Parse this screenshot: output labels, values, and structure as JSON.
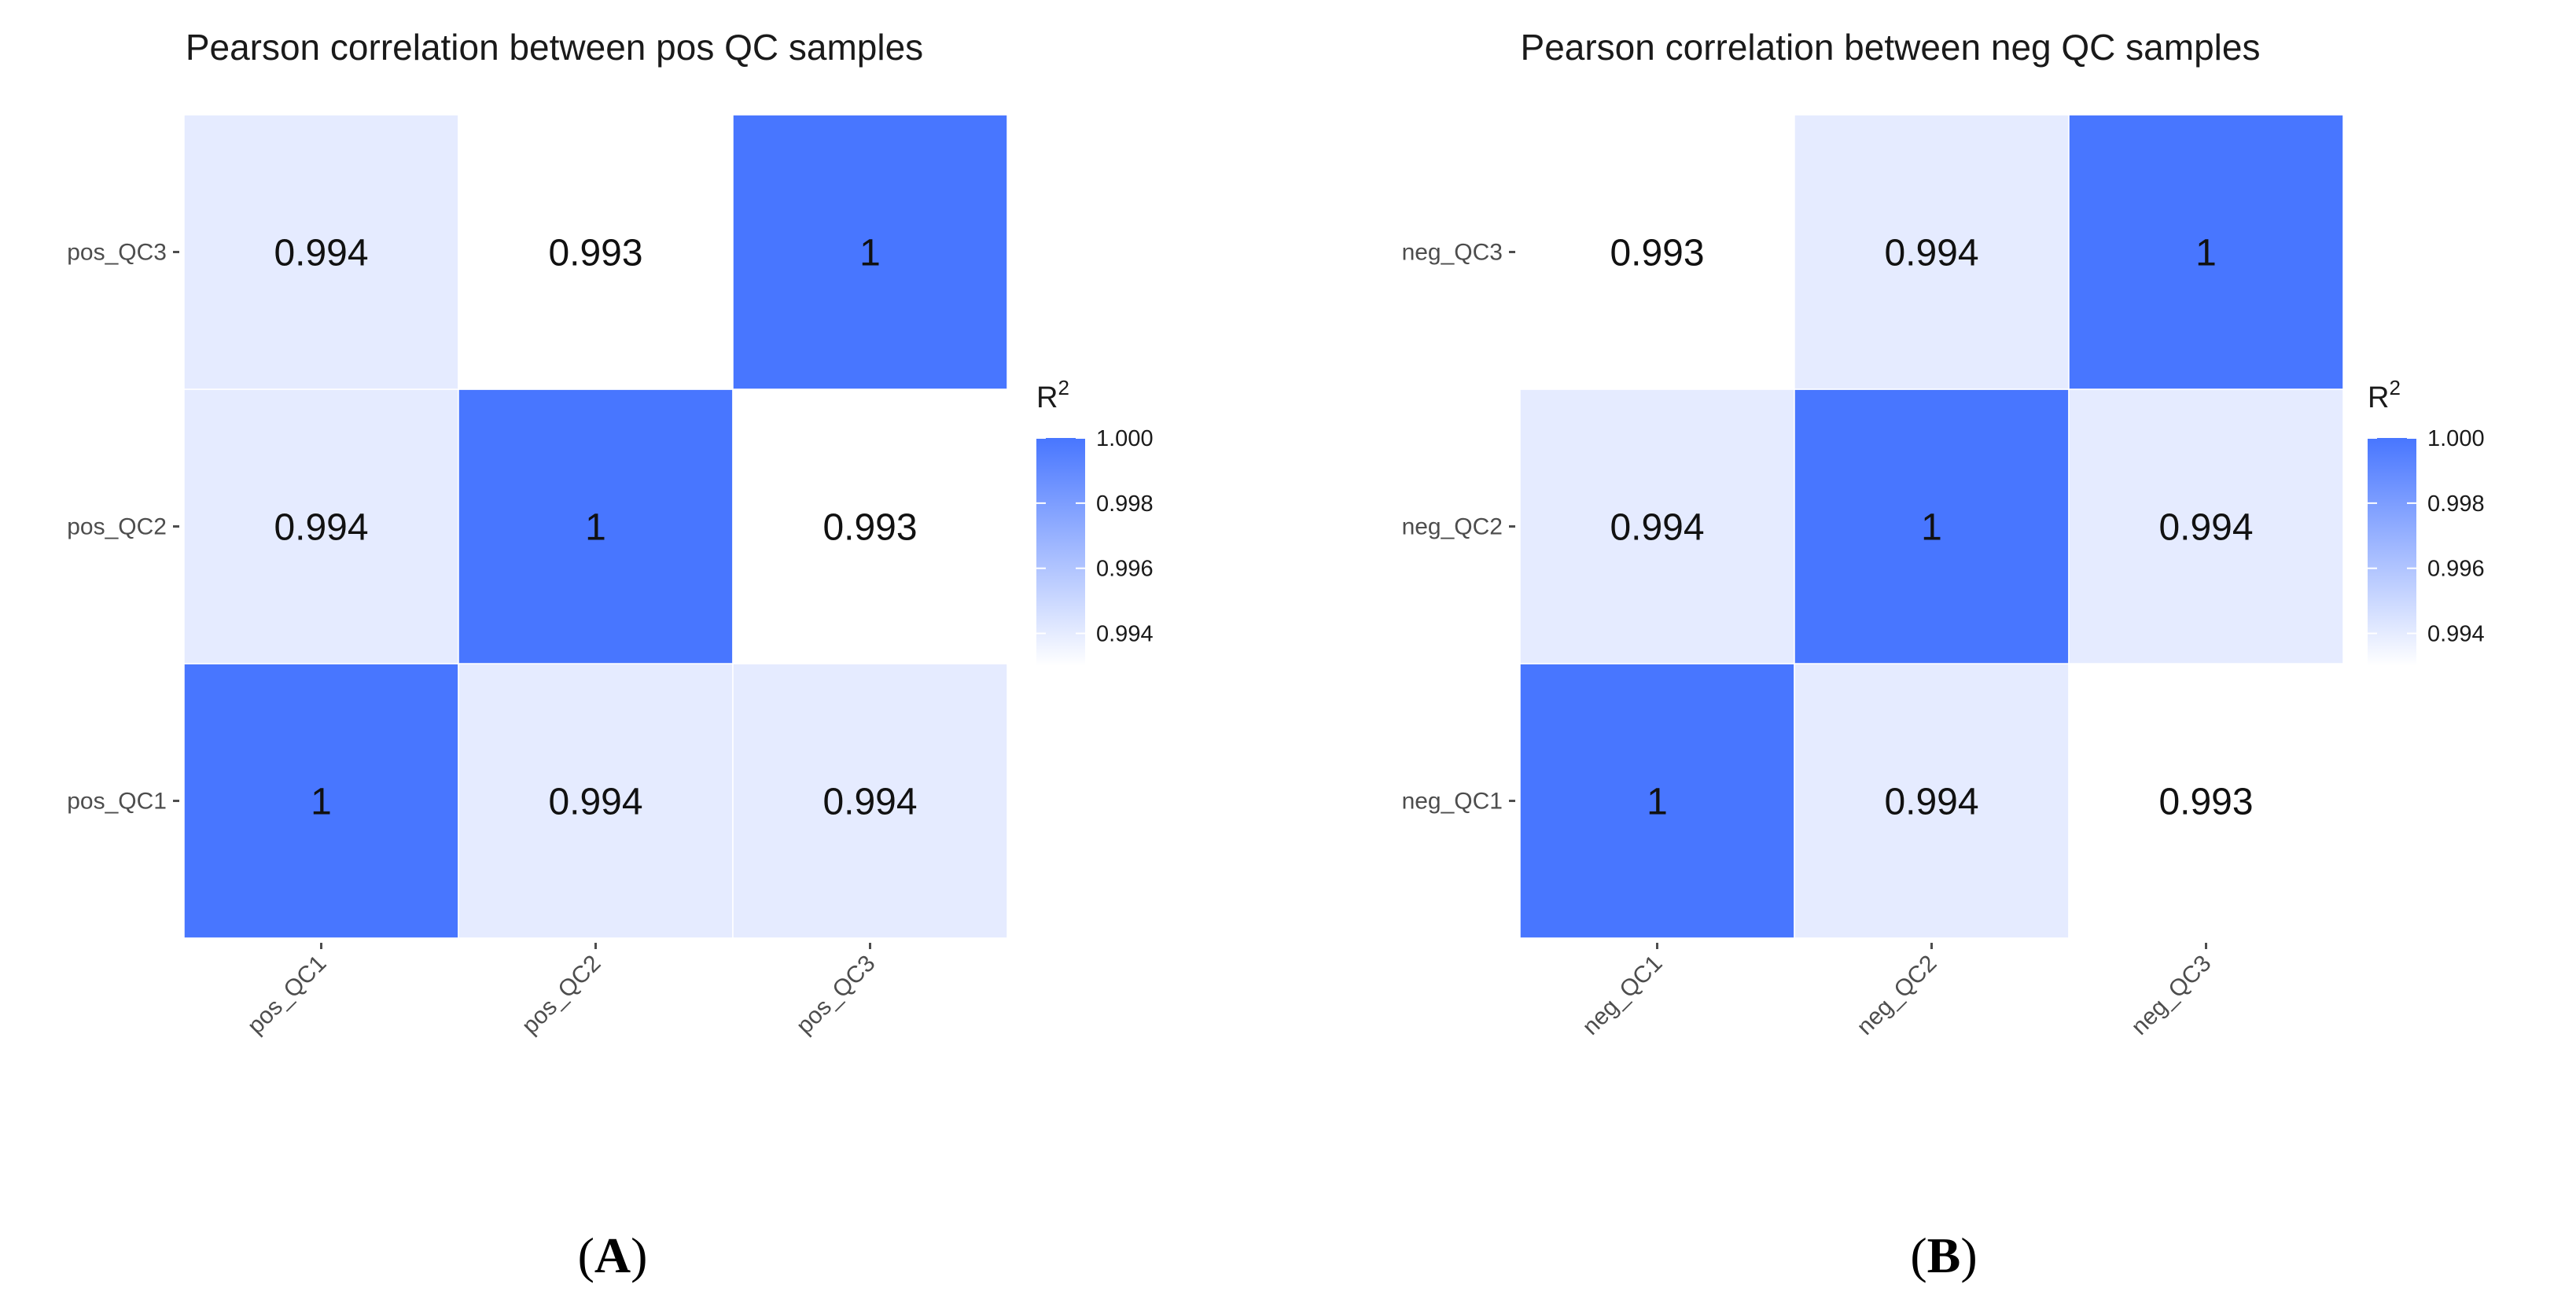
{
  "chart_data": [
    {
      "type": "heatmap",
      "title": "Pearson correlation between pos QC samples",
      "x_categories": [
        "pos_QC1",
        "pos_QC2",
        "pos_QC3"
      ],
      "y_categories": [
        "pos_QC1",
        "pos_QC2",
        "pos_QC3"
      ],
      "values": [
        {
          "x": "pos_QC1",
          "y": "pos_QC1",
          "value": 1,
          "label": "1"
        },
        {
          "x": "pos_QC2",
          "y": "pos_QC1",
          "value": 0.994,
          "label": "0.994"
        },
        {
          "x": "pos_QC3",
          "y": "pos_QC1",
          "value": 0.994,
          "label": "0.994"
        },
        {
          "x": "pos_QC1",
          "y": "pos_QC2",
          "value": 0.994,
          "label": "0.994"
        },
        {
          "x": "pos_QC2",
          "y": "pos_QC2",
          "value": 1,
          "label": "1"
        },
        {
          "x": "pos_QC3",
          "y": "pos_QC2",
          "value": 0.993,
          "label": "0.993"
        },
        {
          "x": "pos_QC1",
          "y": "pos_QC3",
          "value": 0.994,
          "label": "0.994"
        },
        {
          "x": "pos_QC2",
          "y": "pos_QC3",
          "value": 0.993,
          "label": "0.993"
        },
        {
          "x": "pos_QC3",
          "y": "pos_QC3",
          "value": 1,
          "label": "1"
        }
      ],
      "legend": {
        "title_base": "R",
        "title_sup": "2",
        "ticks": [
          "1.000",
          "0.998",
          "0.996",
          "0.994"
        ],
        "tick_values": [
          1.0,
          0.998,
          0.996,
          0.994
        ],
        "range": [
          0.993,
          1.0
        ],
        "placement": "right"
      },
      "color_low": "#ffffff",
      "color_high": "#4876ff",
      "panel_label": "A"
    },
    {
      "type": "heatmap",
      "title": "Pearson correlation between neg QC samples",
      "x_categories": [
        "neg_QC1",
        "neg_QC2",
        "neg_QC3"
      ],
      "y_categories": [
        "neg_QC1",
        "neg_QC2",
        "neg_QC3"
      ],
      "values": [
        {
          "x": "neg_QC1",
          "y": "neg_QC1",
          "value": 1,
          "label": "1"
        },
        {
          "x": "neg_QC2",
          "y": "neg_QC1",
          "value": 0.994,
          "label": "0.994"
        },
        {
          "x": "neg_QC3",
          "y": "neg_QC1",
          "value": 0.993,
          "label": "0.993"
        },
        {
          "x": "neg_QC1",
          "y": "neg_QC2",
          "value": 0.994,
          "label": "0.994"
        },
        {
          "x": "neg_QC2",
          "y": "neg_QC2",
          "value": 1,
          "label": "1"
        },
        {
          "x": "neg_QC3",
          "y": "neg_QC2",
          "value": 0.994,
          "label": "0.994"
        },
        {
          "x": "neg_QC1",
          "y": "neg_QC3",
          "value": 0.993,
          "label": "0.993"
        },
        {
          "x": "neg_QC2",
          "y": "neg_QC3",
          "value": 0.994,
          "label": "0.994"
        },
        {
          "x": "neg_QC3",
          "y": "neg_QC3",
          "value": 1,
          "label": "1"
        }
      ],
      "legend": {
        "title_base": "R",
        "title_sup": "2",
        "ticks": [
          "1.000",
          "0.998",
          "0.996",
          "0.994"
        ],
        "tick_values": [
          1.0,
          0.998,
          0.996,
          0.994
        ],
        "range": [
          0.993,
          1.0
        ],
        "placement": "right"
      },
      "color_low": "#ffffff",
      "color_high": "#4876ff",
      "panel_label": "B"
    }
  ]
}
